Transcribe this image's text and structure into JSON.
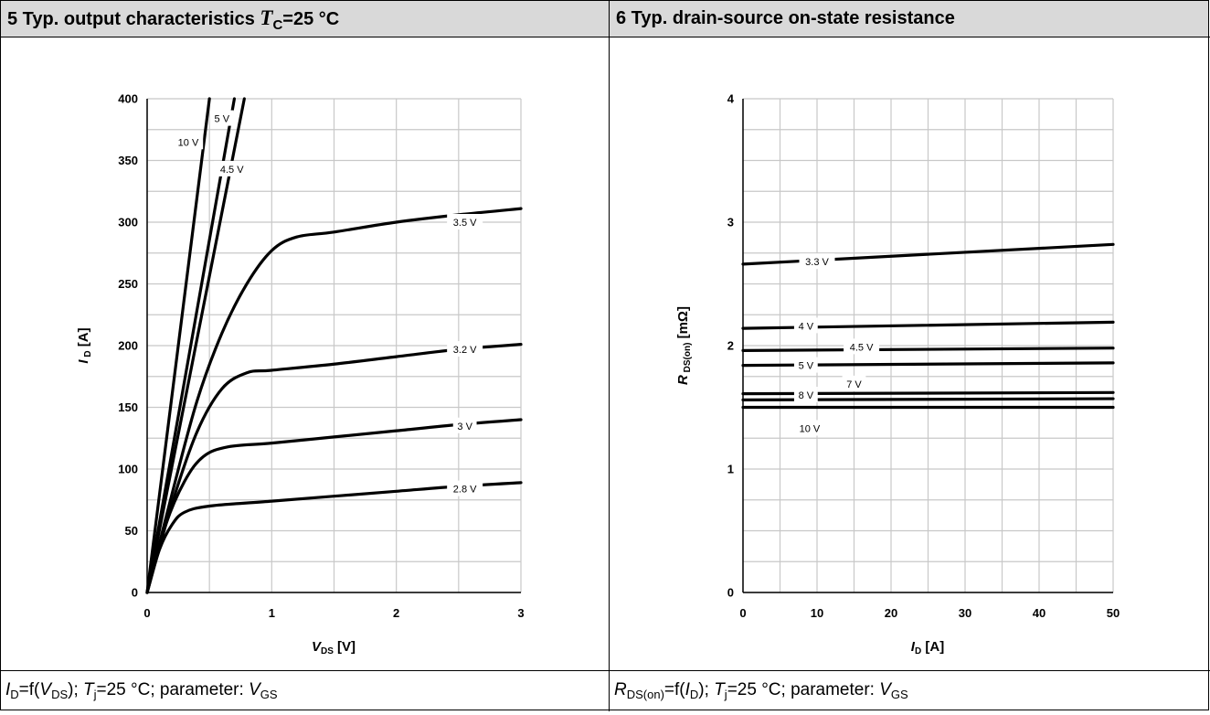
{
  "left_panel": {
    "title_prefix": "5 Typ. output characteristics ",
    "title_T": "T",
    "title_T_sub": "C",
    "title_suffix": "=25 °C",
    "footer": {
      "I": "I",
      "I_sub": "D",
      "eq": "=f(",
      "V": "V",
      "V_sub": "DS",
      "mid": "); ",
      "Tj": "T",
      "Tj_sub": "j",
      "rest": "=25 °C; parameter: ",
      "Vgs": "V",
      "Vgs_sub": "GS"
    }
  },
  "right_panel": {
    "title": "6 Typ. drain-source on-state resistance",
    "footer": {
      "R": "R",
      "R_sub": "DS(on)",
      "eq": "=f(",
      "I": "I",
      "I_sub": "D",
      "mid": "); ",
      "Tj": "T",
      "Tj_sub": "j",
      "rest": "=25 °C; parameter: ",
      "Vgs": "V",
      "Vgs_sub": "GS"
    }
  },
  "chart_data": [
    {
      "type": "line",
      "x_axis": {
        "label_main": "V",
        "label_sub": "DS",
        "label_unit": " [V]",
        "range": [
          0,
          3
        ],
        "ticks": [
          0,
          1,
          2,
          3
        ],
        "tick_labels": [
          "0",
          "1",
          "2",
          "3"
        ]
      },
      "y_axis": {
        "label_main": "I",
        "label_sub": "D",
        "label_unit": " [A]",
        "range": [
          0,
          400
        ],
        "ticks": [
          0,
          50,
          100,
          150,
          200,
          250,
          300,
          350,
          400
        ],
        "tick_labels": [
          "0",
          "50",
          "100",
          "150",
          "200",
          "250",
          "300",
          "350",
          "400"
        ]
      },
      "grid": true,
      "series": [
        {
          "name": "10 V",
          "x": [
            0,
            0.5
          ],
          "y": [
            0,
            400
          ]
        },
        {
          "name": "5 V",
          "x": [
            0,
            0.7
          ],
          "y": [
            0,
            400
          ]
        },
        {
          "name": "4.5 V",
          "x": [
            0,
            0.78
          ],
          "y": [
            0,
            400
          ]
        },
        {
          "name": "3.5 V",
          "x": [
            0,
            0.2,
            0.4,
            0.6,
            0.8,
            1.0,
            1.2,
            1.5,
            2.0,
            2.5,
            3.0
          ],
          "y": [
            0,
            80,
            155,
            210,
            250,
            277,
            288,
            292,
            300,
            306,
            311
          ]
        },
        {
          "name": "3.2 V",
          "x": [
            0,
            0.2,
            0.4,
            0.6,
            0.8,
            1.0,
            1.5,
            2.0,
            2.5,
            3.0
          ],
          "y": [
            0,
            72,
            130,
            165,
            178,
            180,
            185,
            191,
            197,
            201
          ]
        },
        {
          "name": "3 V",
          "x": [
            0,
            0.15,
            0.3,
            0.45,
            0.65,
            1.0,
            1.5,
            2.0,
            2.5,
            3.0
          ],
          "y": [
            0,
            55,
            90,
            110,
            118,
            121,
            126,
            131,
            136,
            140
          ]
        },
        {
          "name": "2.8 V",
          "x": [
            0,
            0.1,
            0.2,
            0.3,
            0.5,
            1.0,
            1.5,
            2.0,
            2.5,
            3.0
          ],
          "y": [
            0,
            35,
            55,
            65,
            70,
            74,
            78,
            82,
            86,
            89
          ]
        }
      ],
      "labels": [
        {
          "text": "10 V",
          "x": 0.33,
          "y": 365
        },
        {
          "text": "5 V",
          "x": 0.6,
          "y": 384
        },
        {
          "text": "4.5 V",
          "x": 0.68,
          "y": 343
        },
        {
          "text": "3.5 V",
          "x": 2.55,
          "y": 300
        },
        {
          "text": "3.2 V",
          "x": 2.55,
          "y": 197
        },
        {
          "text": "3 V",
          "x": 2.55,
          "y": 135
        },
        {
          "text": "2.8 V",
          "x": 2.55,
          "y": 84
        }
      ]
    },
    {
      "type": "line",
      "x_axis": {
        "label_main": "I",
        "label_sub": "D",
        "label_unit": " [A]",
        "range": [
          0,
          50
        ],
        "ticks": [
          0,
          10,
          20,
          30,
          40,
          50
        ],
        "tick_labels": [
          "0",
          "10",
          "20",
          "30",
          "40",
          "50"
        ]
      },
      "y_axis": {
        "label_main": "R",
        "label_sub": "DS(on)",
        "label_unit": "   [mΩ]",
        "range": [
          0,
          4
        ],
        "ticks": [
          0,
          1,
          2,
          3,
          4
        ],
        "tick_labels": [
          "0",
          "1",
          "2",
          "3",
          "4"
        ]
      },
      "grid": true,
      "series": [
        {
          "name": "3.3 V",
          "x": [
            0,
            50
          ],
          "y": [
            2.66,
            2.82
          ]
        },
        {
          "name": "4 V",
          "x": [
            0,
            50
          ],
          "y": [
            2.14,
            2.19
          ]
        },
        {
          "name": "4.5 V",
          "x": [
            0,
            50
          ],
          "y": [
            1.96,
            1.98
          ]
        },
        {
          "name": "5 V",
          "x": [
            0,
            50
          ],
          "y": [
            1.84,
            1.86
          ]
        },
        {
          "name": "7 V",
          "x": [
            0,
            50
          ],
          "y": [
            1.61,
            1.62
          ]
        },
        {
          "name": "8 V",
          "x": [
            0,
            50
          ],
          "y": [
            1.56,
            1.57
          ]
        },
        {
          "name": "10 V",
          "x": [
            0,
            50
          ],
          "y": [
            1.5,
            1.5
          ]
        }
      ],
      "labels": [
        {
          "text": "3.3 V",
          "x": 10,
          "y": 2.68
        },
        {
          "text": "4 V",
          "x": 8.5,
          "y": 2.16
        },
        {
          "text": "4.5 V",
          "x": 16,
          "y": 1.99
        },
        {
          "text": "5 V",
          "x": 8.5,
          "y": 1.84
        },
        {
          "text": "7 V",
          "x": 15,
          "y": 1.69
        },
        {
          "text": "8 V",
          "x": 8.5,
          "y": 1.6
        },
        {
          "text": "10 V",
          "x": 9,
          "y": 1.33
        }
      ]
    }
  ]
}
